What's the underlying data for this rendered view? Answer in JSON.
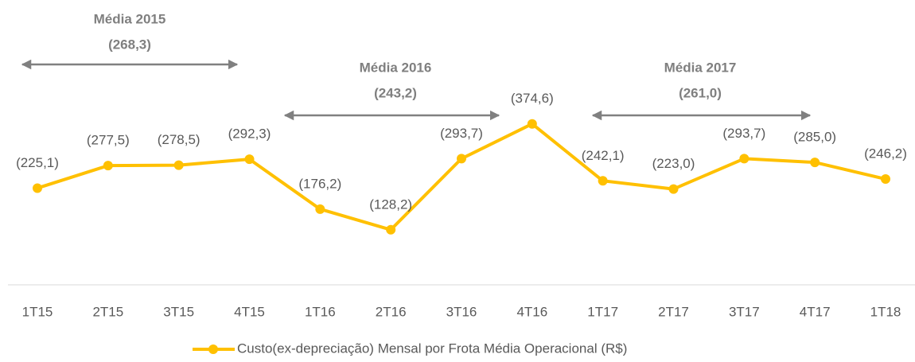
{
  "chart_data": {
    "type": "line",
    "categories": [
      "1T15",
      "2T15",
      "3T15",
      "4T15",
      "1T16",
      "2T16",
      "3T16",
      "4T16",
      "1T17",
      "2T17",
      "3T17",
      "4T17",
      "1T18"
    ],
    "series": [
      {
        "name": "Custo(ex-depreciação) Mensal por Frota Média Operacional (R$)",
        "color": "#FFC000",
        "values": [
          225.1,
          277.5,
          278.5,
          292.3,
          176.2,
          128.2,
          293.7,
          374.6,
          242.1,
          223.0,
          293.7,
          285.0,
          246.2
        ],
        "value_labels": [
          "(225,1)",
          "(277,5)",
          "(278,5)",
          "(292,3)",
          "(176,2)",
          "(128,2)",
          "(293,7)",
          "(374,6)",
          "(242,1)",
          "(223,0)",
          "(293,7)",
          "(285,0)",
          "(246,2)"
        ]
      }
    ],
    "ylim": [
      0,
      500
    ],
    "legend": "bottom",
    "annotations": [
      {
        "title": "Média 2015",
        "text": "(268,3)"
      },
      {
        "title": "Média 2016",
        "text": "(243,2)"
      },
      {
        "title": "Média 2017",
        "text": "(261,0)"
      }
    ]
  }
}
